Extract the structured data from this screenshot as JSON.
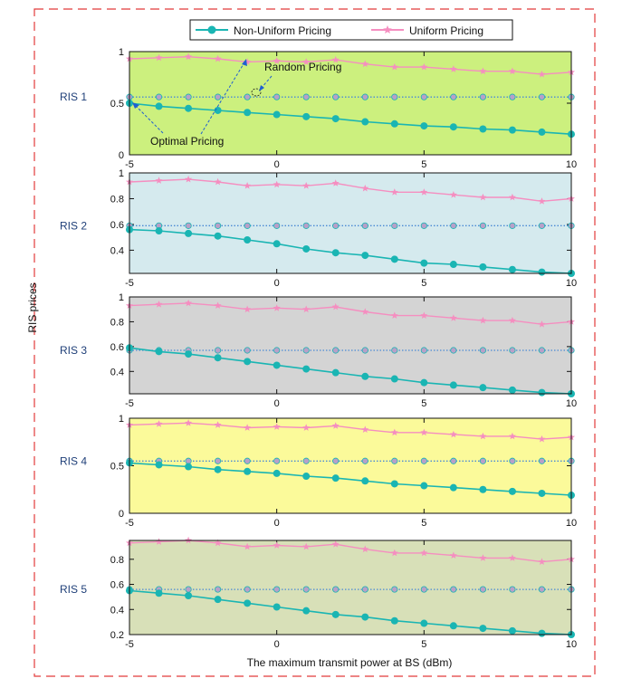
{
  "figure": {
    "ylabel": "RIS prices",
    "xlabel": "The maximum transmit power at BS (dBm)"
  },
  "legend": {
    "entries": [
      {
        "name": "Non-Uniform Pricing",
        "color": "#1ab5b3",
        "marker": "circle"
      },
      {
        "name": "Uniform Pricing",
        "color": "#f58ec0",
        "marker": "star"
      }
    ]
  },
  "annotations": {
    "random_pricing": "Random Pricing",
    "optimal_pricing": "Optimal Pricing"
  },
  "colors": {
    "border_dashed": "#e23b3b",
    "random_line": "#4a8ad4",
    "random_marker": "#b8a0c8"
  },
  "chart_data": [
    {
      "type": "line",
      "panel_label": "RIS 1",
      "background": "#ccf07e",
      "xlim": [
        -5,
        10
      ],
      "ylim": [
        0,
        1
      ],
      "xticks": [
        -5,
        0,
        5,
        10
      ],
      "yticks": [
        0,
        0.5,
        1
      ],
      "x": [
        -5,
        -4,
        -3,
        -2,
        -1,
        0,
        1,
        2,
        3,
        4,
        5,
        6,
        7,
        8,
        9,
        10
      ],
      "series": [
        {
          "name": "Non-Uniform Pricing",
          "values": [
            0.5,
            0.47,
            0.45,
            0.43,
            0.41,
            0.39,
            0.37,
            0.35,
            0.32,
            0.3,
            0.28,
            0.27,
            0.25,
            0.24,
            0.22,
            0.2
          ]
        },
        {
          "name": "Uniform Pricing",
          "values": [
            0.93,
            0.94,
            0.95,
            0.93,
            0.9,
            0.91,
            0.9,
            0.92,
            0.88,
            0.85,
            0.85,
            0.83,
            0.81,
            0.81,
            0.78,
            0.8
          ]
        },
        {
          "values": [
            0.56,
            0.56,
            0.56,
            0.56,
            0.56,
            0.56,
            0.56,
            0.56,
            0.56,
            0.56,
            0.56,
            0.56,
            0.56,
            0.56,
            0.56,
            0.56
          ]
        }
      ]
    },
    {
      "type": "line",
      "panel_label": "RIS 2",
      "background": "#d5eaee",
      "xlim": [
        -5,
        10
      ],
      "ylim": [
        0.22,
        1
      ],
      "xticks": [
        -5,
        0,
        5,
        10
      ],
      "yticks": [
        0.4,
        0.6,
        0.8,
        1
      ],
      "x": [
        -5,
        -4,
        -3,
        -2,
        -1,
        0,
        1,
        2,
        3,
        4,
        5,
        6,
        7,
        8,
        9,
        10
      ],
      "series": [
        {
          "name": "Non-Uniform Pricing",
          "values": [
            0.56,
            0.55,
            0.53,
            0.51,
            0.48,
            0.45,
            0.41,
            0.38,
            0.36,
            0.33,
            0.3,
            0.29,
            0.27,
            0.25,
            0.23,
            0.22
          ]
        },
        {
          "name": "Uniform Pricing",
          "values": [
            0.93,
            0.94,
            0.95,
            0.93,
            0.9,
            0.91,
            0.9,
            0.92,
            0.88,
            0.85,
            0.85,
            0.83,
            0.81,
            0.81,
            0.78,
            0.8
          ]
        },
        {
          "values": [
            0.59,
            0.59,
            0.59,
            0.59,
            0.59,
            0.59,
            0.59,
            0.59,
            0.59,
            0.59,
            0.59,
            0.59,
            0.59,
            0.59,
            0.59,
            0.59
          ]
        }
      ]
    },
    {
      "type": "line",
      "panel_label": "RIS 3",
      "background": "#d4d4d4",
      "xlim": [
        -5,
        10
      ],
      "ylim": [
        0.22,
        1
      ],
      "xticks": [
        -5,
        0,
        5,
        10
      ],
      "yticks": [
        0.4,
        0.6,
        0.8,
        1
      ],
      "x": [
        -5,
        -4,
        -3,
        -2,
        -1,
        0,
        1,
        2,
        3,
        4,
        5,
        6,
        7,
        8,
        9,
        10
      ],
      "series": [
        {
          "name": "Non-Uniform Pricing",
          "values": [
            0.59,
            0.56,
            0.54,
            0.51,
            0.48,
            0.45,
            0.42,
            0.39,
            0.36,
            0.34,
            0.31,
            0.29,
            0.27,
            0.25,
            0.23,
            0.22
          ]
        },
        {
          "name": "Uniform Pricing",
          "values": [
            0.93,
            0.94,
            0.95,
            0.93,
            0.9,
            0.91,
            0.9,
            0.92,
            0.88,
            0.85,
            0.85,
            0.83,
            0.81,
            0.81,
            0.78,
            0.8
          ]
        },
        {
          "values": [
            0.57,
            0.57,
            0.57,
            0.57,
            0.57,
            0.57,
            0.57,
            0.57,
            0.57,
            0.57,
            0.57,
            0.57,
            0.57,
            0.57,
            0.57,
            0.57
          ]
        }
      ]
    },
    {
      "type": "line",
      "panel_label": "RIS 4",
      "background": "#fbfa9a",
      "xlim": [
        -5,
        10
      ],
      "ylim": [
        0,
        1
      ],
      "xticks": [
        -5,
        0,
        5,
        10
      ],
      "yticks": [
        0,
        0.5,
        1
      ],
      "x": [
        -5,
        -4,
        -3,
        -2,
        -1,
        0,
        1,
        2,
        3,
        4,
        5,
        6,
        7,
        8,
        9,
        10
      ],
      "series": [
        {
          "name": "Non-Uniform Pricing",
          "values": [
            0.53,
            0.51,
            0.49,
            0.46,
            0.44,
            0.42,
            0.39,
            0.37,
            0.34,
            0.31,
            0.29,
            0.27,
            0.25,
            0.23,
            0.21,
            0.19
          ]
        },
        {
          "name": "Uniform Pricing",
          "values": [
            0.93,
            0.94,
            0.95,
            0.93,
            0.9,
            0.91,
            0.9,
            0.92,
            0.88,
            0.85,
            0.85,
            0.83,
            0.81,
            0.81,
            0.78,
            0.8
          ]
        },
        {
          "values": [
            0.55,
            0.55,
            0.55,
            0.55,
            0.55,
            0.55,
            0.55,
            0.55,
            0.55,
            0.55,
            0.55,
            0.55,
            0.55,
            0.55,
            0.55,
            0.55
          ]
        }
      ]
    },
    {
      "type": "line",
      "panel_label": "RIS 5",
      "background": "#d8e0b8",
      "xlim": [
        -5,
        10
      ],
      "ylim": [
        0.2,
        0.95
      ],
      "xticks": [
        -5,
        0,
        5,
        10
      ],
      "yticks": [
        0.2,
        0.4,
        0.6,
        0.8
      ],
      "x": [
        -5,
        -4,
        -3,
        -2,
        -1,
        0,
        1,
        2,
        3,
        4,
        5,
        6,
        7,
        8,
        9,
        10
      ],
      "series": [
        {
          "name": "Non-Uniform Pricing",
          "values": [
            0.55,
            0.53,
            0.51,
            0.48,
            0.45,
            0.42,
            0.39,
            0.36,
            0.34,
            0.31,
            0.29,
            0.27,
            0.25,
            0.23,
            0.21,
            0.2
          ]
        },
        {
          "name": "Uniform Pricing",
          "values": [
            0.93,
            0.94,
            0.95,
            0.93,
            0.9,
            0.91,
            0.9,
            0.92,
            0.88,
            0.85,
            0.85,
            0.83,
            0.81,
            0.81,
            0.78,
            0.8
          ]
        },
        {
          "values": [
            0.56,
            0.56,
            0.56,
            0.56,
            0.56,
            0.56,
            0.56,
            0.56,
            0.56,
            0.56,
            0.56,
            0.56,
            0.56,
            0.56,
            0.56,
            0.56
          ]
        }
      ]
    }
  ]
}
